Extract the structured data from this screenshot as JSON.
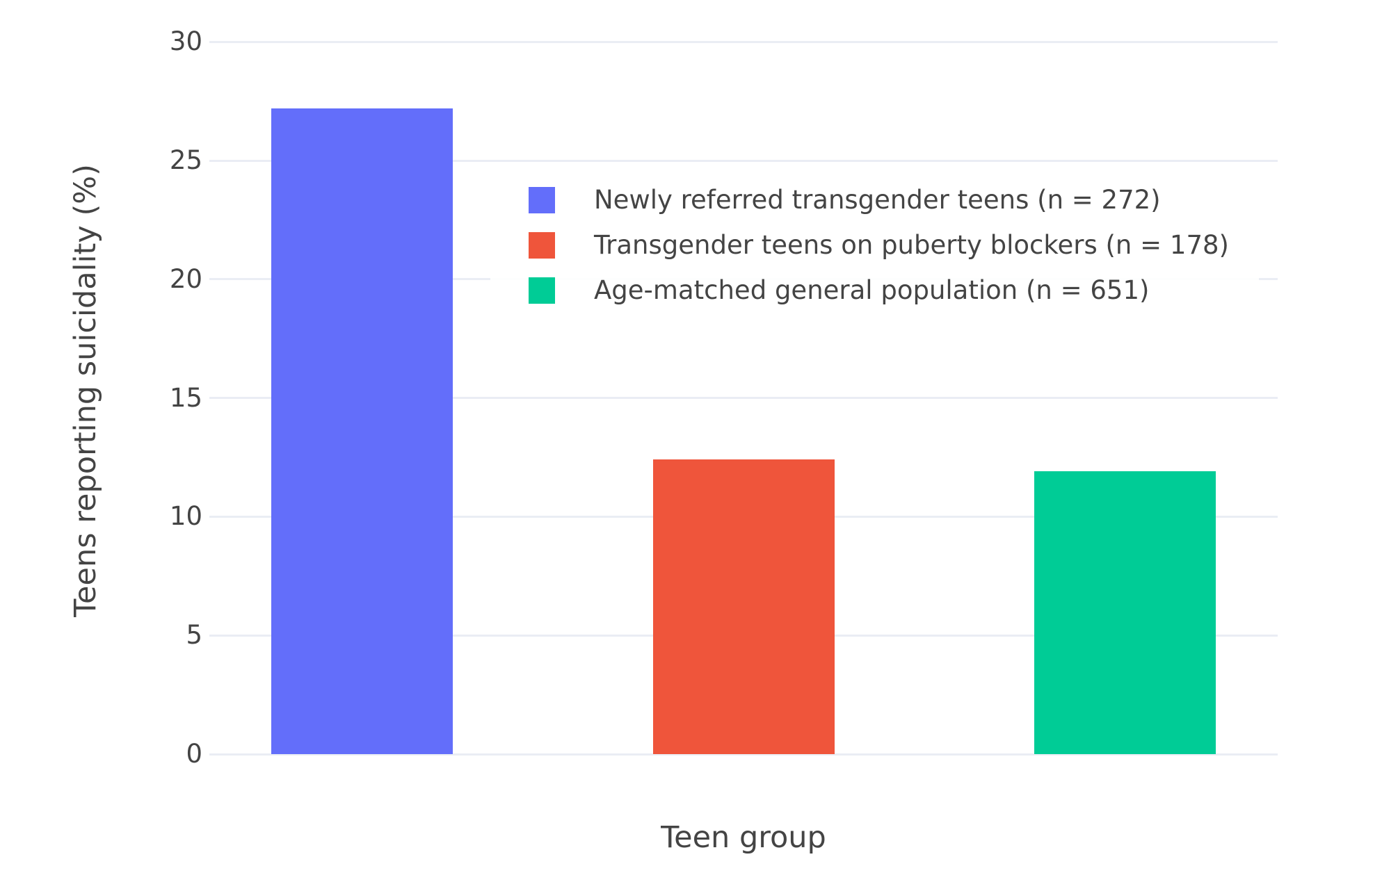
{
  "colors": {
    "background": "#FFFFFF",
    "gridline": "#EAEDF4",
    "text": "#444444",
    "bar_blue": "#636EFA",
    "bar_red": "#EF553B",
    "bar_green": "#00CC96"
  },
  "chart_data": {
    "type": "bar",
    "title": "",
    "xlabel": "Teen group",
    "ylabel": "Teens reporting suicidality (%)",
    "bars": [
      {
        "label": "Newly referred transgender teens (n = 272)",
        "value": 27.2,
        "color": "#636EFA"
      },
      {
        "label": "Transgender teens on puberty blockers (n = 178)",
        "value": 12.4,
        "color": "#EF553B"
      },
      {
        "label": "Age-matched general population (n = 651)",
        "value": 11.9,
        "color": "#00CC96"
      }
    ],
    "y_ticks": [
      0,
      5,
      10,
      15,
      20,
      25,
      30
    ],
    "ylim": [
      0,
      30.4
    ],
    "x_tick_labels_visible": false,
    "grid": true,
    "legend_position": "inside-top-center"
  }
}
